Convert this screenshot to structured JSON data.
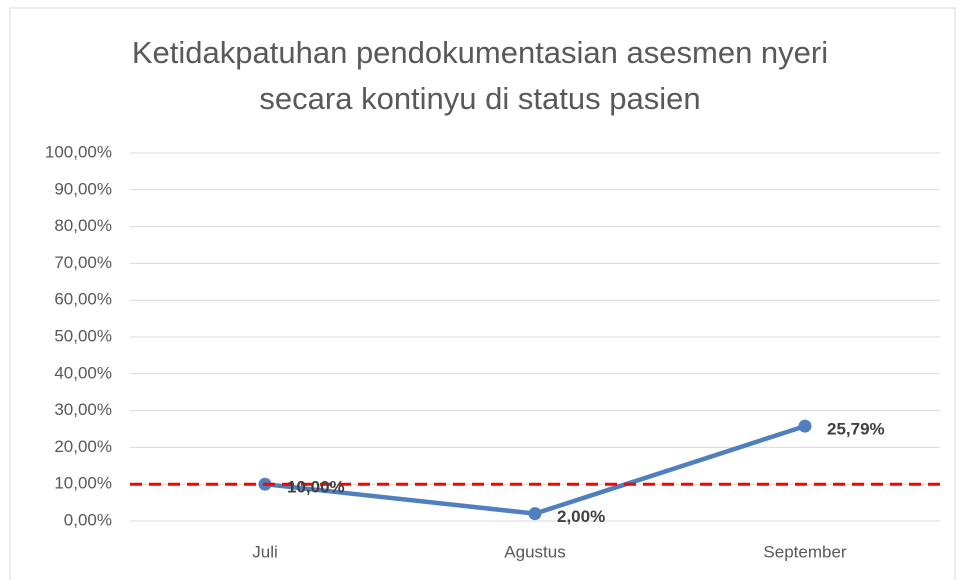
{
  "chart_data": {
    "type": "line",
    "title": "Ketidakpatuhan pendokumentasian asesmen nyeri secara kontinyu di status pasien",
    "categories": [
      "Juli",
      "Agustus",
      "September"
    ],
    "series": [
      {
        "name": "Ketidakpatuhan",
        "color": "#4f7fbf",
        "values": [
          10,
          2,
          25.79
        ],
        "value_labels": [
          "10,00%",
          "2,00%",
          "25,79%"
        ]
      }
    ],
    "ylim": [
      0,
      100
    ],
    "yticks": [
      {
        "value": 0,
        "label": "0,00%"
      },
      {
        "value": 10,
        "label": "10,00%"
      },
      {
        "value": 20,
        "label": "20,00%"
      },
      {
        "value": 30,
        "label": "30,00%"
      },
      {
        "value": 40,
        "label": "40,00%"
      },
      {
        "value": 50,
        "label": "50,00%"
      },
      {
        "value": 60,
        "label": "60,00%"
      },
      {
        "value": 70,
        "label": "70,00%"
      },
      {
        "value": 80,
        "label": "80,00%"
      },
      {
        "value": 90,
        "label": "90,00%"
      },
      {
        "value": 100,
        "label": "100,00%"
      }
    ],
    "grid": true,
    "reference_line": {
      "value": 10,
      "color": "#ff0000"
    }
  }
}
